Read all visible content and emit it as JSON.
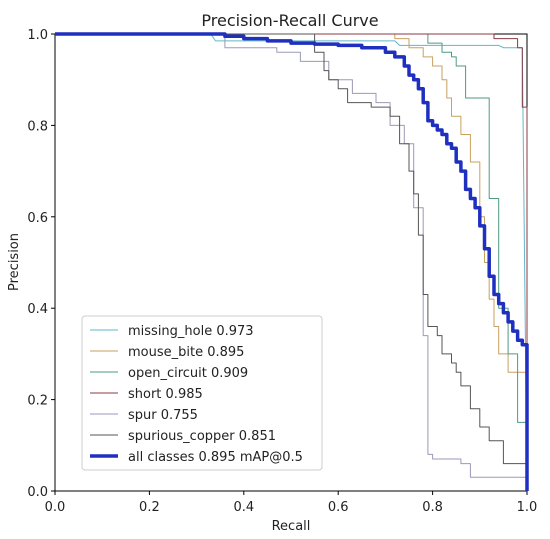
{
  "chart_data": {
    "type": "line",
    "title": "Precision-Recall Curve",
    "xlabel": "Recall",
    "ylabel": "Precision",
    "xlim": [
      0,
      1
    ],
    "ylim": [
      0,
      1
    ],
    "xticks": [
      "0.0",
      "0.2",
      "0.4",
      "0.6",
      "0.8",
      "1.0"
    ],
    "yticks": [
      "0.0",
      "0.2",
      "0.4",
      "0.6",
      "0.8",
      "1.0"
    ],
    "grid": false,
    "legend_position": "lower-left",
    "series": [
      {
        "name": "missing_hole 0.973",
        "color": "#5fb7c8",
        "width": 1,
        "x": [
          0,
          0.33,
          0.34,
          0.72,
          0.73,
          0.94,
          0.95,
          0.99,
          1.0
        ],
        "y": [
          1,
          1,
          0.985,
          0.985,
          0.975,
          0.975,
          0.97,
          0.97,
          0
        ]
      },
      {
        "name": "mouse_bite 0.895",
        "color": "#c9a060",
        "width": 1,
        "x": [
          0,
          0.69,
          0.72,
          0.75,
          0.78,
          0.8,
          0.82,
          0.83,
          0.84,
          0.86,
          0.88,
          0.9,
          0.91,
          0.92,
          0.93,
          0.94,
          0.96,
          1.0
        ],
        "y": [
          1,
          1,
          0.99,
          0.97,
          0.95,
          0.93,
          0.9,
          0.86,
          0.82,
          0.78,
          0.72,
          0.6,
          0.5,
          0.42,
          0.36,
          0.3,
          0.26,
          0
        ],
        "steps": true
      },
      {
        "name": "open_circuit 0.909",
        "color": "#4e9a85",
        "width": 1,
        "x": [
          0,
          0.75,
          0.79,
          0.82,
          0.84,
          0.85,
          0.87,
          0.89,
          0.92,
          0.94,
          0.96,
          0.98,
          1.0
        ],
        "y": [
          1,
          1,
          0.98,
          0.96,
          0.95,
          0.93,
          0.86,
          0.86,
          0.64,
          0.4,
          0.3,
          0.15,
          0
        ],
        "steps": true
      },
      {
        "name": "short 0.985",
        "color": "#8a3a44",
        "width": 1,
        "x": [
          0,
          0.92,
          0.93,
          0.97,
          0.98,
          0.99,
          1.0
        ],
        "y": [
          1,
          1,
          0.99,
          0.99,
          0.97,
          0.84,
          0
        ],
        "steps": true
      },
      {
        "name": "spur 0.755",
        "color": "#9a9ab8",
        "width": 1,
        "x": [
          0,
          0.33,
          0.36,
          0.47,
          0.52,
          0.58,
          0.63,
          0.68,
          0.71,
          0.74,
          0.76,
          0.78,
          0.79,
          0.8,
          0.86,
          0.88,
          1.0
        ],
        "y": [
          1,
          1,
          0.97,
          0.96,
          0.94,
          0.9,
          0.87,
          0.85,
          0.8,
          0.76,
          0.62,
          0.34,
          0.08,
          0.07,
          0.06,
          0.03,
          0
        ],
        "steps": true
      },
      {
        "name": "spurious_copper 0.851",
        "color": "#555555",
        "width": 1,
        "x": [
          0,
          0.5,
          0.55,
          0.57,
          0.58,
          0.6,
          0.62,
          0.67,
          0.71,
          0.73,
          0.75,
          0.76,
          0.77,
          0.78,
          0.79,
          0.81,
          0.82,
          0.84,
          0.85,
          0.86,
          0.88,
          0.9,
          0.92,
          0.95,
          1.0
        ],
        "y": [
          1,
          1,
          0.96,
          0.92,
          0.9,
          0.88,
          0.85,
          0.84,
          0.82,
          0.76,
          0.7,
          0.65,
          0.56,
          0.43,
          0.36,
          0.34,
          0.3,
          0.28,
          0.26,
          0.23,
          0.18,
          0.14,
          0.11,
          0.06,
          0
        ],
        "steps": true
      },
      {
        "name": "all classes 0.895 mAP@0.5",
        "color": "#1f2fbf",
        "width": 3.5,
        "x": [
          0,
          0.33,
          0.36,
          0.4,
          0.45,
          0.5,
          0.55,
          0.6,
          0.65,
          0.7,
          0.72,
          0.74,
          0.75,
          0.76,
          0.77,
          0.78,
          0.79,
          0.8,
          0.81,
          0.82,
          0.83,
          0.84,
          0.85,
          0.86,
          0.87,
          0.88,
          0.89,
          0.9,
          0.91,
          0.92,
          0.93,
          0.94,
          0.95,
          0.96,
          0.97,
          0.98,
          0.99,
          1.0
        ],
        "y": [
          1,
          1,
          0.995,
          0.99,
          0.985,
          0.98,
          0.978,
          0.975,
          0.97,
          0.96,
          0.95,
          0.93,
          0.91,
          0.9,
          0.88,
          0.85,
          0.81,
          0.8,
          0.79,
          0.78,
          0.76,
          0.75,
          0.72,
          0.7,
          0.66,
          0.64,
          0.62,
          0.58,
          0.53,
          0.47,
          0.43,
          0.41,
          0.39,
          0.37,
          0.35,
          0.33,
          0.32,
          0
        ],
        "steps": true
      }
    ]
  }
}
